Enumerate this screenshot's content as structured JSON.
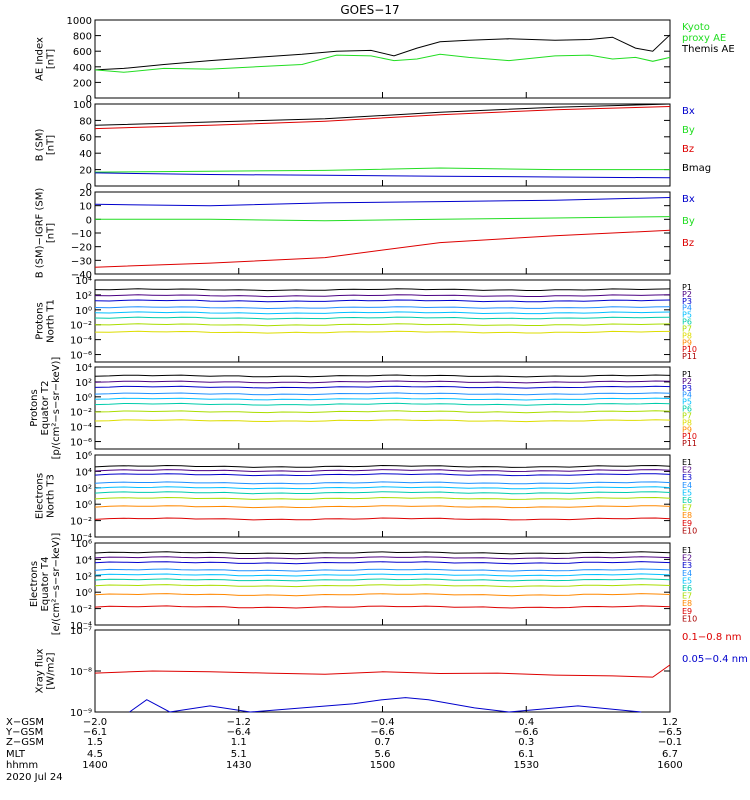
{
  "title": "GOES−17",
  "colors": {
    "black": "#000000",
    "green": "#22dd22",
    "blue": "#0000cc",
    "red": "#dd0000"
  },
  "chart_data": [
    {
      "type": "line",
      "ylabel": "AE Index\n[nT]",
      "yscale": "linear",
      "ylim": [
        0,
        1000
      ],
      "yticks": [
        0,
        200,
        400,
        600,
        800,
        1000
      ],
      "yticklabels": [
        "0",
        "200",
        "400",
        "600",
        "800",
        "1000"
      ],
      "legend": [
        {
          "label": "Kyoto\nproxy AE",
          "color": "#22dd22"
        },
        {
          "label": "Themis AE",
          "color": "#000000"
        }
      ],
      "series": [
        {
          "name": "Themis AE",
          "color": "#000000",
          "x": [
            0,
            0.05,
            0.12,
            0.2,
            0.28,
            0.36,
            0.42,
            0.48,
            0.52,
            0.56,
            0.6,
            0.65,
            0.72,
            0.8,
            0.86,
            0.9,
            0.94,
            0.97,
            1.0
          ],
          "y": [
            360,
            380,
            430,
            480,
            520,
            560,
            600,
            610,
            540,
            640,
            720,
            740,
            760,
            740,
            750,
            780,
            640,
            600,
            810
          ]
        },
        {
          "name": "Kyoto proxy AE",
          "color": "#22dd22",
          "x": [
            0,
            0.05,
            0.12,
            0.2,
            0.28,
            0.36,
            0.42,
            0.48,
            0.52,
            0.56,
            0.6,
            0.65,
            0.72,
            0.8,
            0.86,
            0.9,
            0.94,
            0.97,
            1.0
          ],
          "y": [
            360,
            330,
            380,
            370,
            400,
            430,
            550,
            540,
            480,
            500,
            560,
            520,
            480,
            540,
            550,
            500,
            520,
            470,
            520
          ]
        }
      ]
    },
    {
      "type": "line",
      "ylabel": "B (SM)\n[nT]",
      "yscale": "linear",
      "ylim": [
        0,
        100
      ],
      "yticks": [
        0,
        20,
        40,
        60,
        80,
        100
      ],
      "yticklabels": [
        "0",
        "20",
        "40",
        "60",
        "80",
        "100"
      ],
      "legend": [
        {
          "label": "Bx",
          "color": "#0000cc"
        },
        {
          "label": "By",
          "color": "#22dd22"
        },
        {
          "label": "Bz",
          "color": "#dd0000"
        },
        {
          "label": "Bmag",
          "color": "#000000"
        }
      ],
      "series": [
        {
          "name": "Bmag",
          "color": "#000000",
          "x": [
            0,
            0.2,
            0.4,
            0.6,
            0.8,
            1.0
          ],
          "y": [
            74,
            78,
            82,
            90,
            96,
            100
          ]
        },
        {
          "name": "Bz",
          "color": "#dd0000",
          "x": [
            0,
            0.2,
            0.4,
            0.6,
            0.8,
            1.0
          ],
          "y": [
            70,
            74,
            79,
            87,
            93,
            97
          ]
        },
        {
          "name": "By",
          "color": "#22dd22",
          "x": [
            0,
            0.2,
            0.4,
            0.6,
            0.8,
            1.0
          ],
          "y": [
            17,
            18,
            19,
            22,
            20,
            20
          ]
        },
        {
          "name": "Bx",
          "color": "#0000cc",
          "x": [
            0,
            0.2,
            0.4,
            0.6,
            0.8,
            1.0
          ],
          "y": [
            16,
            14,
            13,
            12,
            11,
            10
          ]
        }
      ]
    },
    {
      "type": "line",
      "ylabel": "B (SM)−IGRF (SM)\n[nT]",
      "yscale": "linear",
      "ylim": [
        -40,
        20
      ],
      "yticks": [
        -40,
        -30,
        -20,
        -10,
        0,
        10,
        20
      ],
      "yticklabels": [
        "−40",
        "−30",
        "−20",
        "−10",
        "0",
        "10",
        "20"
      ],
      "legend": [
        {
          "label": "Bx",
          "color": "#0000cc"
        },
        {
          "label": "By",
          "color": "#22dd22"
        },
        {
          "label": "Bz",
          "color": "#dd0000"
        }
      ],
      "series": [
        {
          "name": "Bx",
          "color": "#0000cc",
          "x": [
            0,
            0.2,
            0.4,
            0.6,
            0.8,
            1.0
          ],
          "y": [
            11,
            10,
            12,
            13,
            14,
            16
          ]
        },
        {
          "name": "By",
          "color": "#22dd22",
          "x": [
            0,
            0.2,
            0.4,
            0.6,
            0.8,
            1.0
          ],
          "y": [
            0,
            0,
            -1,
            0,
            1,
            2
          ]
        },
        {
          "name": "Bz",
          "color": "#dd0000",
          "x": [
            0,
            0.2,
            0.4,
            0.6,
            0.8,
            1.0
          ],
          "y": [
            -35,
            -32,
            -28,
            -17,
            -12,
            -8
          ]
        }
      ]
    },
    {
      "type": "line",
      "ylabel": "Protons\nNorth T1",
      "yscale": "log",
      "ylim": [
        -7,
        4
      ],
      "yticks": [
        -6,
        -4,
        -2,
        0,
        2,
        4
      ],
      "yticklabels": [
        "10⁻⁶",
        "10⁻⁴",
        "10⁻²",
        "10⁰",
        "10²",
        "10⁴"
      ],
      "legend": [
        {
          "label": "P1",
          "color": "#000000"
        },
        {
          "label": "P2",
          "color": "#4b0082"
        },
        {
          "label": "P3",
          "color": "#0000cc"
        },
        {
          "label": "P4",
          "color": "#1e90ff"
        },
        {
          "label": "P5",
          "color": "#00bfff"
        },
        {
          "label": "P6",
          "color": "#00ccaa"
        },
        {
          "label": "P7",
          "color": "#aadd00"
        },
        {
          "label": "P8",
          "color": "#dddd00"
        },
        {
          "label": "P9",
          "color": "#ff8800"
        },
        {
          "label": "P10",
          "color": "#dd0000"
        },
        {
          "label": "P11",
          "color": "#aa0000"
        }
      ],
      "series": [
        {
          "name": "P1",
          "color": "#000000",
          "levels": [
            2.7
          ]
        },
        {
          "name": "P2",
          "color": "#4b0082",
          "levels": [
            1.9
          ]
        },
        {
          "name": "P3",
          "color": "#0000cc",
          "levels": [
            1.2
          ]
        },
        {
          "name": "P4",
          "color": "#1e90ff",
          "levels": [
            0.3
          ]
        },
        {
          "name": "P5",
          "color": "#00bfff",
          "levels": [
            -0.4
          ]
        },
        {
          "name": "P6",
          "color": "#00ccaa",
          "levels": [
            -1.1
          ]
        },
        {
          "name": "P7",
          "color": "#aadd00",
          "levels": [
            -2.0
          ]
        },
        {
          "name": "P8",
          "color": "#dddd00",
          "levels": [
            -3.0
          ]
        }
      ]
    },
    {
      "type": "line",
      "ylabel": "Protons\nEquator T2\n[p/(cm²−s−sr−keV)]",
      "yscale": "log",
      "ylim": [
        -7,
        4
      ],
      "yticks": [
        -6,
        -4,
        -2,
        0,
        2,
        4
      ],
      "yticklabels": [
        "10⁻⁶",
        "10⁻⁴",
        "10⁻²",
        "10⁰",
        "10²",
        "10⁴"
      ],
      "legend": [
        {
          "label": "P1",
          "color": "#000000"
        },
        {
          "label": "P2",
          "color": "#4b0082"
        },
        {
          "label": "P3",
          "color": "#0000cc"
        },
        {
          "label": "P4",
          "color": "#1e90ff"
        },
        {
          "label": "P5",
          "color": "#00bfff"
        },
        {
          "label": "P6",
          "color": "#00ccaa"
        },
        {
          "label": "P7",
          "color": "#aadd00"
        },
        {
          "label": "P8",
          "color": "#dddd00"
        },
        {
          "label": "P9",
          "color": "#ff8800"
        },
        {
          "label": "P10",
          "color": "#dd0000"
        },
        {
          "label": "P11",
          "color": "#aa0000"
        }
      ],
      "series": [
        {
          "name": "P1",
          "color": "#000000",
          "levels": [
            2.8
          ]
        },
        {
          "name": "P2",
          "color": "#4b0082",
          "levels": [
            2.0
          ]
        },
        {
          "name": "P3",
          "color": "#0000cc",
          "levels": [
            1.3
          ]
        },
        {
          "name": "P4",
          "color": "#1e90ff",
          "levels": [
            0.4
          ]
        },
        {
          "name": "P5",
          "color": "#00bfff",
          "levels": [
            -0.3
          ]
        },
        {
          "name": "P6",
          "color": "#00ccaa",
          "levels": [
            -1.0
          ]
        },
        {
          "name": "P7",
          "color": "#aadd00",
          "levels": [
            -2.0
          ]
        },
        {
          "name": "P8",
          "color": "#dddd00",
          "levels": [
            -3.2
          ]
        }
      ]
    },
    {
      "type": "line",
      "ylabel": "Electrons\nNorth T3",
      "yscale": "log",
      "ylim": [
        -4,
        6
      ],
      "yticks": [
        -4,
        -2,
        0,
        2,
        4,
        6
      ],
      "yticklabels": [
        "10⁻⁴",
        "10⁻²",
        "10⁰",
        "10²",
        "10⁴",
        "10⁶"
      ],
      "legend": [
        {
          "label": "E1",
          "color": "#000000"
        },
        {
          "label": "E2",
          "color": "#4b0082"
        },
        {
          "label": "E3",
          "color": "#0000cc"
        },
        {
          "label": "E4",
          "color": "#1e90ff"
        },
        {
          "label": "E5",
          "color": "#00bfff"
        },
        {
          "label": "E6",
          "color": "#00ccaa"
        },
        {
          "label": "E7",
          "color": "#aadd00"
        },
        {
          "label": "E8",
          "color": "#ff8800"
        },
        {
          "label": "E9",
          "color": "#dd0000"
        },
        {
          "label": "E10",
          "color": "#aa0000"
        }
      ],
      "series": [
        {
          "name": "E1",
          "color": "#000000",
          "levels": [
            4.6
          ]
        },
        {
          "name": "E2",
          "color": "#4b0082",
          "levels": [
            4.1
          ]
        },
        {
          "name": "E3",
          "color": "#0000cc",
          "levels": [
            3.6
          ]
        },
        {
          "name": "E4",
          "color": "#1e90ff",
          "levels": [
            2.6
          ]
        },
        {
          "name": "E5",
          "color": "#00bfff",
          "levels": [
            2.0
          ]
        },
        {
          "name": "E6",
          "color": "#00ccaa",
          "levels": [
            1.4
          ]
        },
        {
          "name": "E7",
          "color": "#aadd00",
          "levels": [
            0.7
          ]
        },
        {
          "name": "E8",
          "color": "#ff8800",
          "levels": [
            -0.3
          ]
        },
        {
          "name": "E9",
          "color": "#dd0000",
          "levels": [
            -1.8
          ]
        }
      ]
    },
    {
      "type": "line",
      "ylabel": "Electrons\nEquator T4\n[e/(cm²−s−sr−keV)]",
      "yscale": "log",
      "ylim": [
        -4,
        6
      ],
      "yticks": [
        -4,
        -2,
        0,
        2,
        4,
        6
      ],
      "yticklabels": [
        "10⁻⁴",
        "10⁻²",
        "10⁰",
        "10²",
        "10⁴",
        "10⁶"
      ],
      "legend": [
        {
          "label": "E1",
          "color": "#000000"
        },
        {
          "label": "E2",
          "color": "#4b0082"
        },
        {
          "label": "E3",
          "color": "#0000cc"
        },
        {
          "label": "E4",
          "color": "#1e90ff"
        },
        {
          "label": "E5",
          "color": "#00bfff"
        },
        {
          "label": "E6",
          "color": "#00ccaa"
        },
        {
          "label": "E7",
          "color": "#aadd00"
        },
        {
          "label": "E8",
          "color": "#ff8800"
        },
        {
          "label": "E9",
          "color": "#dd0000"
        },
        {
          "label": "E10",
          "color": "#aa0000"
        }
      ],
      "series": [
        {
          "name": "E1",
          "color": "#000000",
          "levels": [
            4.8
          ]
        },
        {
          "name": "E2",
          "color": "#4b0082",
          "levels": [
            4.2
          ]
        },
        {
          "name": "E3",
          "color": "#0000cc",
          "levels": [
            3.6
          ]
        },
        {
          "name": "E4",
          "color": "#1e90ff",
          "levels": [
            2.7
          ]
        },
        {
          "name": "E5",
          "color": "#00bfff",
          "levels": [
            2.1
          ]
        },
        {
          "name": "E6",
          "color": "#00ccaa",
          "levels": [
            1.5
          ]
        },
        {
          "name": "E7",
          "color": "#aadd00",
          "levels": [
            0.8
          ]
        },
        {
          "name": "E8",
          "color": "#ff8800",
          "levels": [
            -0.3
          ]
        },
        {
          "name": "E9",
          "color": "#dd0000",
          "levels": [
            -1.8
          ]
        }
      ]
    },
    {
      "type": "line",
      "ylabel": "Xray flux\n[W/m2]",
      "yscale": "log",
      "ylim": [
        -9,
        -7
      ],
      "yticks": [
        -9,
        -8,
        -7
      ],
      "yticklabels": [
        "10⁻⁹",
        "10⁻⁸",
        "10⁻⁷"
      ],
      "legend": [
        {
          "label": "0.1−0.8 nm",
          "color": "#dd0000"
        },
        {
          "label": "0.05−0.4 nm",
          "color": "#0000cc"
        }
      ],
      "series": [
        {
          "name": "0.1−0.8 nm",
          "color": "#dd0000",
          "x": [
            0,
            0.1,
            0.2,
            0.3,
            0.4,
            0.5,
            0.6,
            0.7,
            0.8,
            0.9,
            0.97,
            1.0
          ],
          "y": [
            -8.05,
            -8.0,
            -8.02,
            -8.05,
            -8.08,
            -8.02,
            -8.06,
            -8.05,
            -8.1,
            -8.12,
            -8.15,
            -7.85
          ]
        },
        {
          "name": "0.05−0.4 nm",
          "color": "#0000cc",
          "x": [
            0.06,
            0.09,
            0.13,
            0.2,
            0.27,
            0.45,
            0.5,
            0.54,
            0.58,
            0.66,
            0.72,
            0.84,
            0.95
          ],
          "y": [
            -9.0,
            -8.7,
            -9.0,
            -8.85,
            -9.0,
            -8.8,
            -8.7,
            -8.65,
            -8.7,
            -8.9,
            -9.0,
            -8.85,
            -9.0
          ]
        }
      ]
    }
  ],
  "xaxis": {
    "x": [
      -2.0,
      -1.2,
      -0.4,
      0.4,
      1.2
    ],
    "rows": [
      {
        "label": "X−GSM",
        "values": [
          "−2.0",
          "−1.2",
          "−0.4",
          "0.4",
          "1.2"
        ]
      },
      {
        "label": "Y−GSM",
        "values": [
          "−6.1",
          "−6.4",
          "−6.6",
          "−6.6",
          "−6.5"
        ]
      },
      {
        "label": "Z−GSM",
        "values": [
          "1.5",
          "1.1",
          "0.7",
          "0.3",
          "−0.1"
        ]
      },
      {
        "label": "MLT",
        "values": [
          "4.5",
          "5.1",
          "5.6",
          "6.1",
          "6.7"
        ]
      },
      {
        "label": "hhmm",
        "values": [
          "1400",
          "1430",
          "1500",
          "1530",
          "1600"
        ]
      }
    ],
    "date": "2020 Jul 24"
  }
}
